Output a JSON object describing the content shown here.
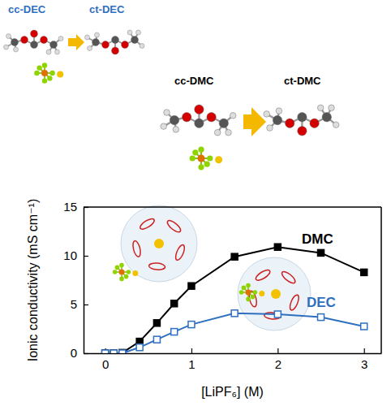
{
  "chart_data": {
    "type": "line",
    "x_label": "[LiPF₆] (M)",
    "y_label": "Ionic conductivity (mS cm⁻¹)",
    "x": [
      0,
      0.1,
      0.2,
      0.4,
      0.6,
      0.8,
      1,
      1.5,
      2,
      2.5,
      3
    ],
    "series": [
      {
        "name": "DMC",
        "color": "#000000",
        "marker": "square",
        "values": [
          0,
          0,
          0.05,
          1.2,
          3.1,
          5.1,
          6.9,
          9.9,
          10.9,
          10.3,
          8.3
        ]
      },
      {
        "name": "DEC",
        "color": "#2f6fc0",
        "marker": "open-square",
        "values": [
          0,
          0,
          0,
          0.6,
          1.4,
          2.2,
          2.95,
          4.1,
          4.0,
          3.7,
          2.75
        ]
      }
    ],
    "xlim": [
      -0.25,
      3.2
    ],
    "ylim": [
      0,
      15
    ],
    "xticks": [
      0,
      1,
      2,
      3
    ],
    "yticks": [
      0,
      5,
      10,
      15
    ],
    "annotations": [
      {
        "text": "cc-DEC",
        "color": "#2f6fc0"
      },
      {
        "text": "ct-DEC",
        "color": "#2f6fc0"
      },
      {
        "text": "cc-DMC",
        "color": "#000000"
      },
      {
        "text": "ct-DMC",
        "color": "#000000"
      }
    ]
  }
}
